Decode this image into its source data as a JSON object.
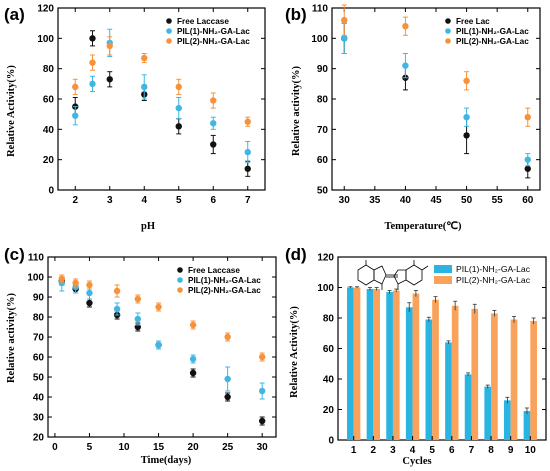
{
  "figure": {
    "panels": [
      "(a)",
      "(b)",
      "(c)",
      "(d)"
    ]
  },
  "chart_data": [
    {
      "type": "scatter",
      "panel_label": "(a)",
      "xlabel": "pH",
      "ylabel": "Relative Activity(%)",
      "xlim": [
        1.5,
        7.5
      ],
      "ylim": [
        0,
        120
      ],
      "xticks": [
        2,
        3,
        4,
        5,
        6,
        7
      ],
      "yticks": [
        0,
        20,
        40,
        60,
        80,
        100,
        120
      ],
      "legend_position": "top-right",
      "series": [
        {
          "name": "Free Laccase",
          "color": "#111111",
          "x": [
            2,
            2.5,
            3,
            4,
            5,
            6,
            7
          ],
          "y": [
            55,
            100,
            73,
            63,
            42,
            30,
            14
          ],
          "err": [
            6,
            5,
            5,
            4,
            5,
            6,
            5
          ]
        },
        {
          "name": "PIL(1)-NH₂-GA-Lac",
          "color": "#3fb6e3",
          "x": [
            2,
            2.5,
            3,
            4,
            5,
            6,
            7
          ],
          "y": [
            49,
            70,
            97,
            68,
            54,
            44,
            25
          ],
          "err": [
            6,
            5,
            9,
            8,
            7,
            4,
            7
          ]
        },
        {
          "name": "PIL(2)-NH₂-GA-Lac",
          "color": "#f7923a",
          "x": [
            2,
            2.5,
            3,
            4,
            5,
            6,
            7
          ],
          "y": [
            68,
            84,
            95,
            87,
            68,
            59,
            45
          ],
          "err": [
            5,
            5,
            6,
            3,
            5,
            5,
            3
          ]
        }
      ]
    },
    {
      "type": "scatter",
      "panel_label": "(b)",
      "xlabel": "Temperature(℃)",
      "ylabel": "Relative activity(%)",
      "xlim": [
        28,
        62
      ],
      "ylim": [
        50,
        110
      ],
      "xticks": [
        30,
        35,
        40,
        45,
        50,
        55,
        60
      ],
      "yticks": [
        50,
        60,
        70,
        80,
        90,
        100,
        110
      ],
      "legend_position": "top-right",
      "series": [
        {
          "name": "Free Lac",
          "color": "#111111",
          "x": [
            30,
            40,
            50,
            60
          ],
          "y": [
            100,
            87,
            68,
            57
          ],
          "err": [
            5,
            4,
            6,
            3
          ]
        },
        {
          "name": "PIL(1)-NH₂-GA-Lac",
          "color": "#3fb6e3",
          "x": [
            30,
            40,
            50,
            60
          ],
          "y": [
            100,
            91,
            74,
            60
          ],
          "err": [
            5,
            4,
            3,
            2
          ]
        },
        {
          "name": "PIL(2)-NH₂-GA-Lac",
          "color": "#f7923a",
          "x": [
            30,
            40,
            50,
            60
          ],
          "y": [
            106,
            104,
            86,
            74
          ],
          "err": [
            5,
            3,
            3,
            3
          ]
        }
      ]
    },
    {
      "type": "scatter",
      "panel_label": "(c)",
      "xlabel": "Time(days)",
      "ylabel": "Relative activity(%)",
      "xlim": [
        -1,
        32
      ],
      "ylim": [
        20,
        110
      ],
      "xticks": [
        0,
        5,
        10,
        15,
        20,
        25,
        30
      ],
      "yticks": [
        20,
        30,
        40,
        50,
        60,
        70,
        80,
        90,
        100,
        110
      ],
      "legend_position": "top-right",
      "series": [
        {
          "name": "Free Laccase",
          "color": "#111111",
          "x": [
            1,
            3,
            5,
            9,
            12,
            15,
            20,
            25,
            30
          ],
          "y": [
            98,
            94,
            87,
            81,
            75,
            66,
            52,
            40,
            28
          ],
          "err": [
            2,
            2,
            2,
            2,
            2,
            2,
            2,
            2,
            2
          ]
        },
        {
          "name": "PIL(1)-NH₂-GA-Lac",
          "color": "#3fb6e3",
          "x": [
            1,
            3,
            5,
            9,
            12,
            15,
            20,
            25,
            30
          ],
          "y": [
            97,
            95,
            92,
            84,
            79,
            66,
            59,
            49,
            43
          ],
          "err": [
            4,
            3,
            3,
            3,
            3,
            2,
            2,
            6,
            4
          ]
        },
        {
          "name": "PIL(2)-NH₂-GA-Lac",
          "color": "#f7923a",
          "x": [
            1,
            3,
            5,
            9,
            12,
            15,
            20,
            25,
            30
          ],
          "y": [
            99,
            97,
            96,
            93,
            89,
            85,
            76,
            70,
            60
          ],
          "err": [
            2,
            2,
            2,
            3,
            2,
            2,
            2,
            2,
            2
          ]
        }
      ]
    },
    {
      "type": "bar",
      "panel_label": "(d)",
      "xlabel": "Cycles",
      "ylabel": "Relative Activity(%)",
      "ylim": [
        0,
        120
      ],
      "yticks": [
        0,
        20,
        40,
        60,
        80,
        100,
        120
      ],
      "categories": [
        "1",
        "2",
        "3",
        "4",
        "5",
        "6",
        "7",
        "8",
        "9",
        "10"
      ],
      "legend_position": "top-right",
      "series": [
        {
          "name": "PIL(1)-NH₂-GA-Lac",
          "color": "#29b4e2",
          "values": [
            100,
            99,
            97,
            87,
            79,
            64,
            43,
            35,
            26,
            19
          ],
          "err": [
            0.5,
            1,
            1,
            3,
            1.5,
            1,
            1,
            1,
            2,
            2
          ]
        },
        {
          "name": "PIL(2)-NH₂-GA-Lac",
          "color": "#f9a25b",
          "values": [
            100,
            99,
            98,
            96,
            92,
            88,
            86,
            83,
            79,
            78
          ],
          "err": [
            0.5,
            1,
            1,
            2,
            2,
            3,
            3,
            2,
            2,
            2
          ]
        }
      ]
    }
  ]
}
